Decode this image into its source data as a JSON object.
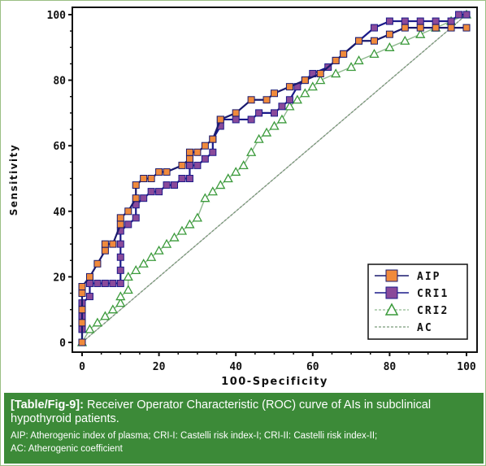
{
  "chart_data": {
    "type": "line",
    "title": "",
    "xlabel": "100-Specificity",
    "ylabel": "Sensitivity",
    "xlim": [
      0,
      100
    ],
    "ylim": [
      0,
      100
    ],
    "x_ticks": [
      "0",
      "20",
      "40",
      "60",
      "80",
      "100"
    ],
    "y_ticks": [
      "0",
      "20",
      "40",
      "60",
      "80",
      "100"
    ],
    "grid": false,
    "legend_position": "bottom-right",
    "diagonal_reference": true,
    "series": [
      {
        "name": "AIP",
        "color": "#f08a3c",
        "line_color": "#1a1a6e",
        "marker": "square",
        "points": [
          [
            0,
            0
          ],
          [
            0,
            6
          ],
          [
            0,
            10
          ],
          [
            0,
            15
          ],
          [
            0,
            17
          ],
          [
            2,
            20
          ],
          [
            4,
            24
          ],
          [
            6,
            28
          ],
          [
            6,
            30
          ],
          [
            8,
            30
          ],
          [
            10,
            36
          ],
          [
            10,
            38
          ],
          [
            12,
            40
          ],
          [
            14,
            44
          ],
          [
            14,
            48
          ],
          [
            16,
            50
          ],
          [
            18,
            50
          ],
          [
            20,
            52
          ],
          [
            22,
            52
          ],
          [
            26,
            54
          ],
          [
            28,
            56
          ],
          [
            28,
            58
          ],
          [
            30,
            58
          ],
          [
            32,
            60
          ],
          [
            34,
            62
          ],
          [
            36,
            68
          ],
          [
            40,
            70
          ],
          [
            44,
            74
          ],
          [
            48,
            74
          ],
          [
            50,
            76
          ],
          [
            54,
            78
          ],
          [
            58,
            80
          ],
          [
            62,
            82
          ],
          [
            66,
            86
          ],
          [
            68,
            88
          ],
          [
            72,
            92
          ],
          [
            76,
            92
          ],
          [
            80,
            94
          ],
          [
            84,
            96
          ],
          [
            88,
            96
          ],
          [
            92,
            96
          ],
          [
            96,
            96
          ],
          [
            100,
            96
          ]
        ]
      },
      {
        "name": "CRI1",
        "color": "#8a4a9a",
        "line_color": "#1a1a8a",
        "marker": "square",
        "points": [
          [
            0,
            0
          ],
          [
            0,
            4
          ],
          [
            0,
            8
          ],
          [
            0,
            12
          ],
          [
            2,
            14
          ],
          [
            2,
            18
          ],
          [
            4,
            18
          ],
          [
            6,
            18
          ],
          [
            8,
            18
          ],
          [
            10,
            18
          ],
          [
            10,
            22
          ],
          [
            10,
            26
          ],
          [
            10,
            30
          ],
          [
            10,
            34
          ],
          [
            12,
            36
          ],
          [
            14,
            38
          ],
          [
            14,
            42
          ],
          [
            16,
            44
          ],
          [
            18,
            46
          ],
          [
            20,
            46
          ],
          [
            22,
            48
          ],
          [
            24,
            48
          ],
          [
            26,
            50
          ],
          [
            28,
            50
          ],
          [
            28,
            54
          ],
          [
            30,
            54
          ],
          [
            32,
            56
          ],
          [
            34,
            58
          ],
          [
            34,
            62
          ],
          [
            36,
            66
          ],
          [
            36,
            68
          ],
          [
            40,
            68
          ],
          [
            44,
            68
          ],
          [
            46,
            70
          ],
          [
            50,
            70
          ],
          [
            52,
            72
          ],
          [
            54,
            74
          ],
          [
            56,
            78
          ],
          [
            58,
            80
          ],
          [
            60,
            82
          ],
          [
            64,
            84
          ],
          [
            66,
            86
          ],
          [
            68,
            88
          ],
          [
            72,
            92
          ],
          [
            76,
            96
          ],
          [
            80,
            98
          ],
          [
            84,
            98
          ],
          [
            88,
            98
          ],
          [
            92,
            98
          ],
          [
            96,
            98
          ],
          [
            98,
            100
          ],
          [
            100,
            100
          ]
        ]
      },
      {
        "name": "CRI2",
        "color": "#3a9a3a",
        "line_color": "#8fb98f",
        "marker": "triangle",
        "points": [
          [
            0,
            0
          ],
          [
            2,
            4
          ],
          [
            4,
            6
          ],
          [
            6,
            8
          ],
          [
            8,
            10
          ],
          [
            10,
            12
          ],
          [
            10,
            14
          ],
          [
            12,
            16
          ],
          [
            12,
            20
          ],
          [
            14,
            22
          ],
          [
            16,
            24
          ],
          [
            18,
            26
          ],
          [
            20,
            28
          ],
          [
            22,
            30
          ],
          [
            24,
            32
          ],
          [
            26,
            34
          ],
          [
            28,
            36
          ],
          [
            30,
            38
          ],
          [
            32,
            44
          ],
          [
            34,
            46
          ],
          [
            36,
            48
          ],
          [
            38,
            50
          ],
          [
            40,
            52
          ],
          [
            42,
            54
          ],
          [
            44,
            58
          ],
          [
            46,
            62
          ],
          [
            48,
            64
          ],
          [
            50,
            66
          ],
          [
            52,
            68
          ],
          [
            54,
            72
          ],
          [
            56,
            74
          ],
          [
            58,
            76
          ],
          [
            60,
            78
          ],
          [
            62,
            80
          ],
          [
            66,
            82
          ],
          [
            70,
            84
          ],
          [
            72,
            86
          ],
          [
            76,
            88
          ],
          [
            80,
            90
          ],
          [
            84,
            92
          ],
          [
            88,
            94
          ],
          [
            92,
            96
          ],
          [
            96,
            98
          ],
          [
            100,
            100
          ]
        ]
      },
      {
        "name": "AC",
        "color": "#7a9a7a",
        "line_color": "#7a9a7a",
        "marker": "none",
        "dashed": true,
        "points": [
          [
            0,
            0
          ],
          [
            4,
            4
          ],
          [
            8,
            8
          ],
          [
            12,
            12
          ],
          [
            16,
            16
          ],
          [
            24,
            24
          ],
          [
            32,
            32
          ],
          [
            40,
            40
          ],
          [
            50,
            50
          ],
          [
            60,
            60
          ],
          [
            70,
            70
          ],
          [
            80,
            80
          ],
          [
            90,
            90
          ],
          [
            100,
            100
          ]
        ]
      }
    ]
  },
  "caption": {
    "label": "[Table/Fig-9]:",
    "title": "Receiver Operator Characteristic (ROC) curve of AIs in subclinical hypothyroid patients.",
    "note_line1": "AIP: Atherogenic index of plasma; CRI-I: Castelli risk index-I; CRI-II: Castelli risk index-II;",
    "note_line2": "AC: Atherogenic coefficient"
  },
  "legend": {
    "labels": [
      "AIP",
      "CRI1",
      "CRI2",
      "AC"
    ]
  }
}
